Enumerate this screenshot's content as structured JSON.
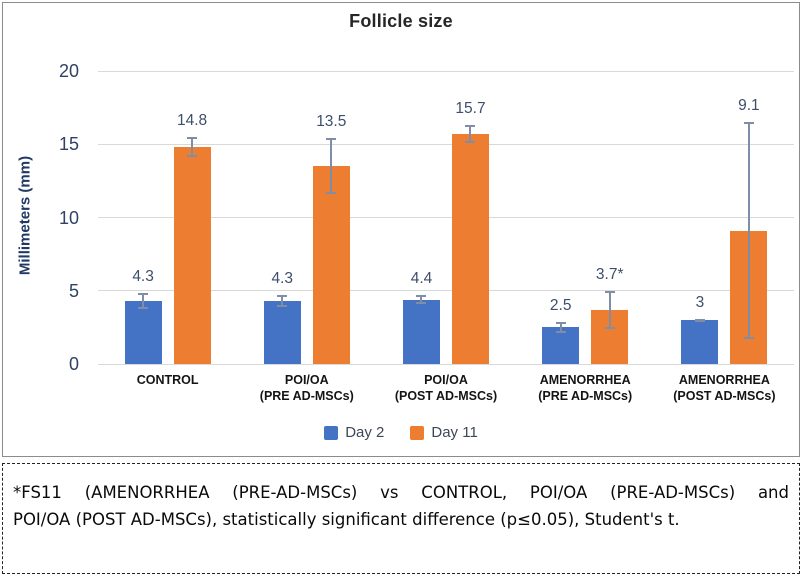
{
  "chart_data": {
    "type": "bar",
    "title": "Follicle size",
    "ylabel": "Millimeters (mm)",
    "ylim": [
      0,
      20
    ],
    "yticks": [
      0,
      5,
      10,
      15,
      20
    ],
    "grid": true,
    "legend_position": "bottom",
    "categories": [
      [
        "CONTROL"
      ],
      [
        "POI/OA",
        "(PRE AD-MSCs)"
      ],
      [
        "POI/OA",
        "(POST AD-MSCs)"
      ],
      [
        "AMENORRHEA",
        "(PRE AD-MSCs)"
      ],
      [
        "AMENORRHEA",
        "(POST AD-MSCs)"
      ]
    ],
    "series": [
      {
        "name": "Day 2",
        "color": "#4472c4",
        "values": [
          4.3,
          4.3,
          4.4,
          2.5,
          3
        ],
        "labels": [
          "4.3",
          "4.3",
          "4.4",
          "2.5",
          "3"
        ],
        "errors": [
          0.55,
          0.4,
          0.3,
          0.4,
          0.1
        ]
      },
      {
        "name": "Day 11",
        "color": "#ed7d31",
        "values": [
          14.8,
          13.5,
          15.7,
          3.7,
          9.1
        ],
        "labels": [
          "14.8",
          "13.5",
          "15.7",
          "3.7*",
          "9.1"
        ],
        "errors": [
          0.7,
          1.9,
          0.6,
          1.3,
          7.4
        ]
      }
    ],
    "colors": {
      "error_bar": "#7f8da6",
      "gridline": "#d9d9d9",
      "title_text": "#262626",
      "tick_text": "#2f4265",
      "axis_title_text": "#203864",
      "data_label_text": "#3f4e6b",
      "legend_text": "#3f4658"
    }
  },
  "footnote": {
    "line1": "*FS11 (AMENORRHEA (PRE-AD-MSCs) vs CONTROL, POI/OA (PRE-AD-MSCs) and",
    "line2": "POI/OA (POST AD-MSCs), statistically significant difference (p≤0.05), Student's t."
  }
}
